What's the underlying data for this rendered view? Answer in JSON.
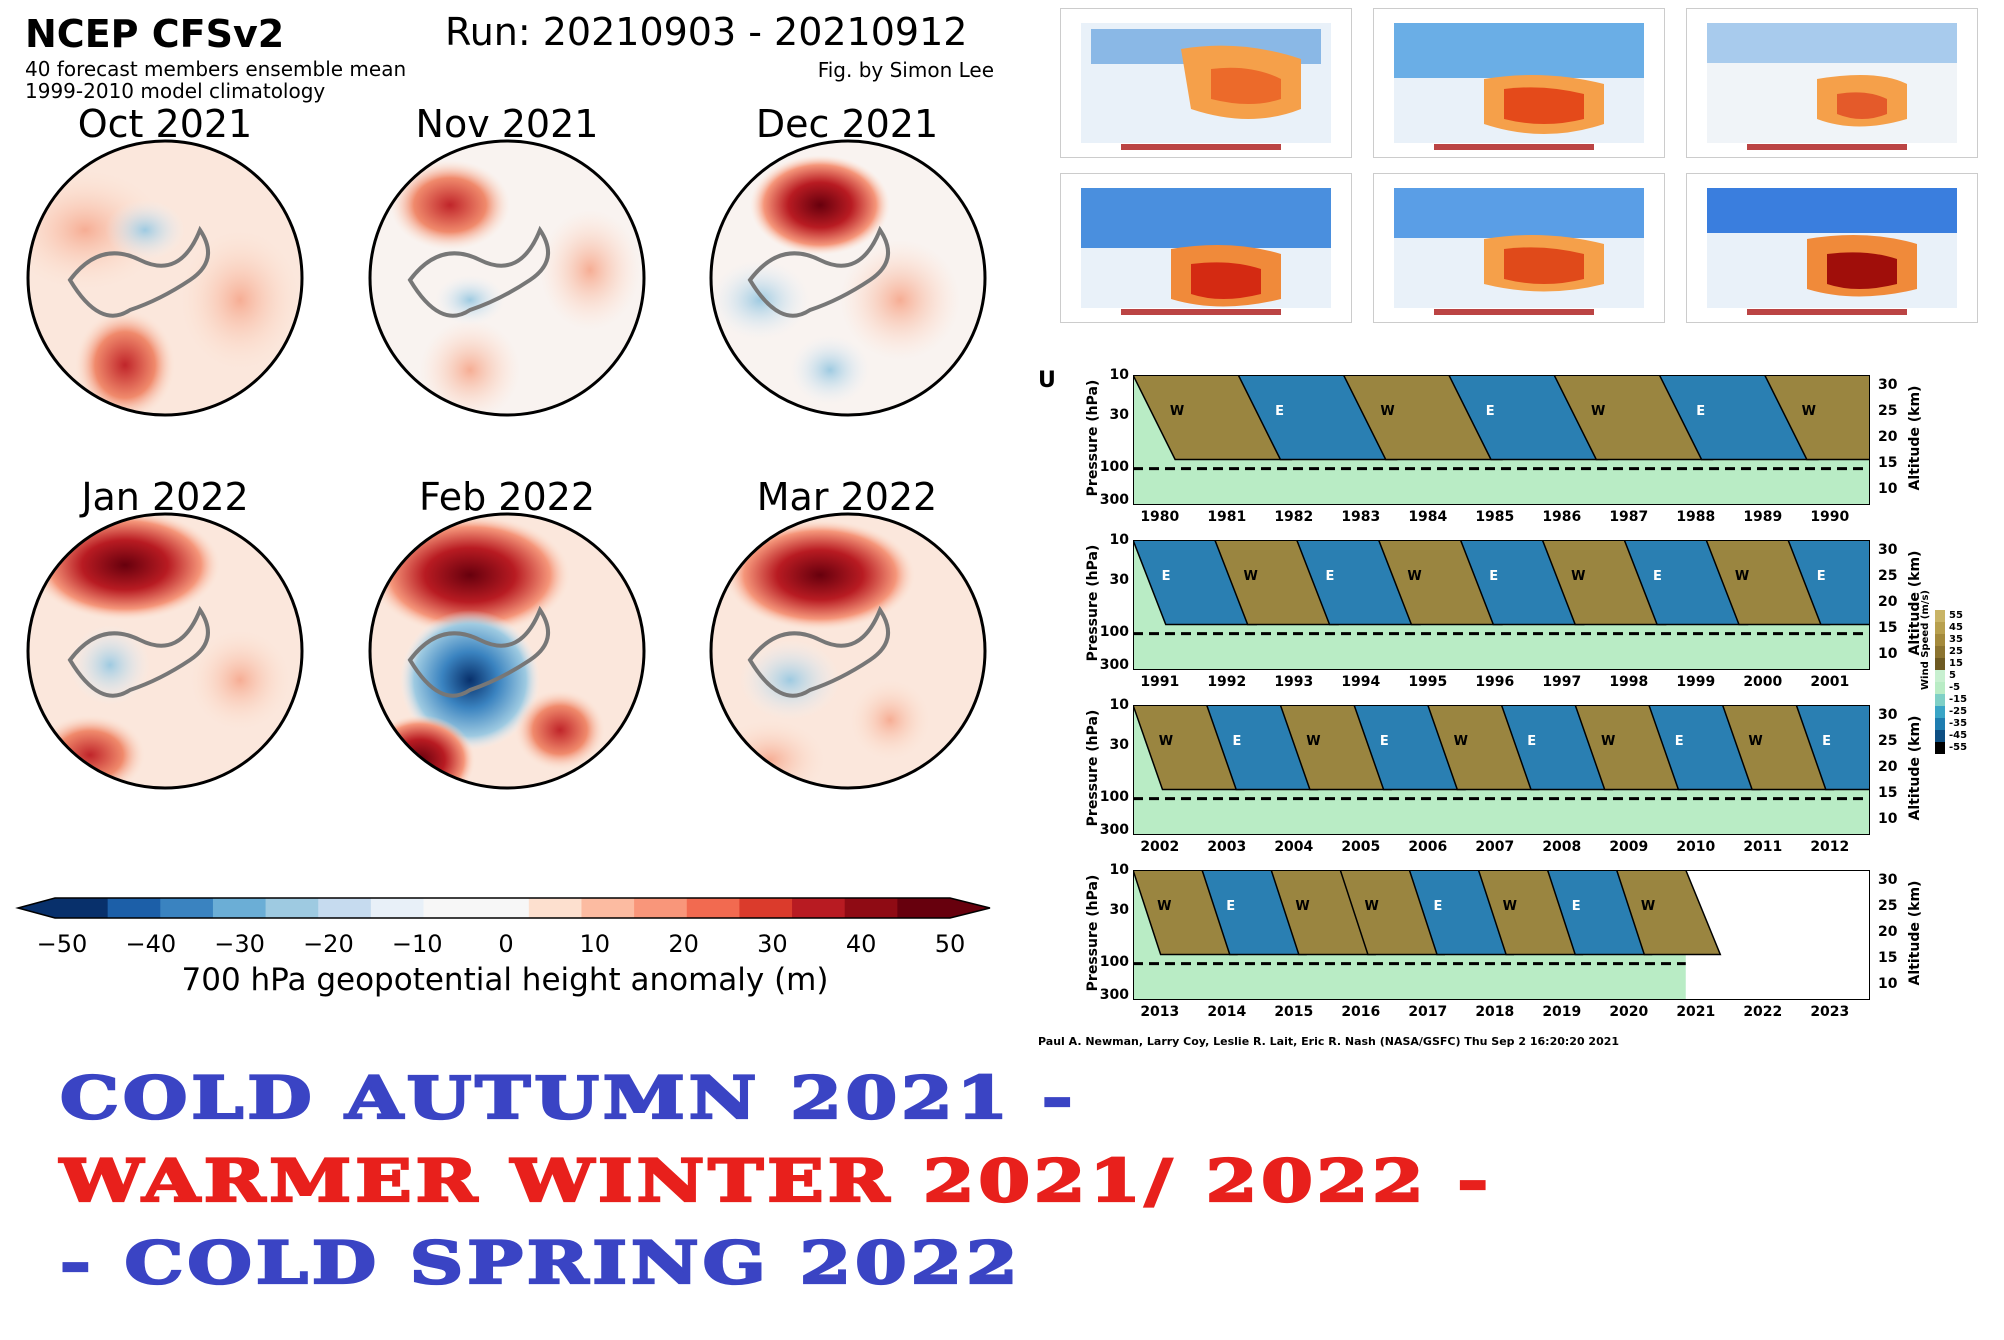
{
  "header": {
    "title": "NCEP CFSv2",
    "run": "Run: 20210903 - 20210912",
    "subtitle1": "40 forecast members ensemble mean",
    "subtitle2": "1999-2010 model climatology",
    "credit": "Fig. by Simon Lee"
  },
  "panels": [
    {
      "month": "Oct 2021"
    },
    {
      "month": "Nov 2021"
    },
    {
      "month": "Dec 2021"
    },
    {
      "month": "Jan 2022"
    },
    {
      "month": "Feb 2022"
    },
    {
      "month": "Mar 2022"
    }
  ],
  "colorbar": {
    "ticks": [
      "−50",
      "−40",
      "−30",
      "−20",
      "−10",
      "0",
      "10",
      "20",
      "30",
      "40",
      "50"
    ],
    "title": "700 hPa geopotential height anomaly (m)",
    "colors": [
      "#08306b",
      "#1c5fa8",
      "#3a83c0",
      "#6baed6",
      "#9ecae1",
      "#c6dbef",
      "#e8f0f8",
      "#f7f7f7",
      "#f7f7f7",
      "#fde0cf",
      "#fcbba1",
      "#f9967a",
      "#f26a50",
      "#db3b2c",
      "#b81b22",
      "#8f0b14",
      "#67000d"
    ]
  },
  "qbo": {
    "label": "U",
    "ylabel": "Pressure (hPa)",
    "y2label": "Altitude (km)",
    "pressure_ticks": [
      "10",
      "30",
      "100",
      "300"
    ],
    "altitude_ticks": [
      "30",
      "25",
      "20",
      "15",
      "10"
    ],
    "rows": [
      {
        "years": [
          "1980",
          "1981",
          "1982",
          "1983",
          "1984",
          "1985",
          "1986",
          "1987",
          "1988",
          "1989",
          "1990"
        ],
        "phases": [
          "W",
          "E",
          "W",
          "E",
          "W",
          "E",
          "W"
        ]
      },
      {
        "years": [
          "1991",
          "1992",
          "1993",
          "1994",
          "1995",
          "1996",
          "1997",
          "1998",
          "1999",
          "2000",
          "2001"
        ],
        "phases": [
          "E",
          "W",
          "E",
          "W",
          "E",
          "W",
          "E",
          "W",
          "E"
        ]
      },
      {
        "years": [
          "2002",
          "2003",
          "2004",
          "2005",
          "2006",
          "2007",
          "2008",
          "2009",
          "2010",
          "2011",
          "2012"
        ],
        "phases": [
          "W",
          "E",
          "W",
          "E",
          "W",
          "E",
          "W",
          "E",
          "W",
          "E"
        ]
      },
      {
        "years": [
          "2013",
          "2014",
          "2015",
          "2016",
          "2017",
          "2018",
          "2019",
          "2020",
          "2021",
          "2022",
          "2023"
        ],
        "phases": [
          "W",
          "E",
          "W",
          "W",
          "E",
          "W",
          "E",
          "W"
        ]
      }
    ],
    "wind_legend_title": "Wind Speed (m/s)",
    "wind_legend_ticks": [
      "55",
      "45",
      "35",
      "25",
      "15",
      "5",
      "-5",
      "-15",
      "-25",
      "-35",
      "-45",
      "-55"
    ],
    "credit": "Paul A. Newman, Larry Coy, Leslie R. Lait, Eric R. Nash (NASA/GSFC) Thu Sep  2 16:20:20 2021"
  },
  "headlines": {
    "line1": "COLD AUTUMN 2021 -",
    "line2": "WARMER WINTER 2021/ 2022 -",
    "line3": "- COLD SPRING 2022",
    "color_cold": "#3a44c4",
    "color_warm": "#e8201c"
  },
  "chart_data": {
    "type": "heatmap",
    "title": "NCEP CFSv2",
    "colorbar_label": "700 hPa geopotential height anomaly (m)",
    "colorbar_range": [
      -50,
      50
    ],
    "colorbar_ticks": [
      -50,
      -40,
      -30,
      -20,
      -10,
      0,
      10,
      20,
      30,
      40,
      50
    ],
    "panels": [
      "Oct 2021",
      "Nov 2021",
      "Dec 2021",
      "Jan 2022",
      "Feb 2022",
      "Mar 2022"
    ]
  }
}
